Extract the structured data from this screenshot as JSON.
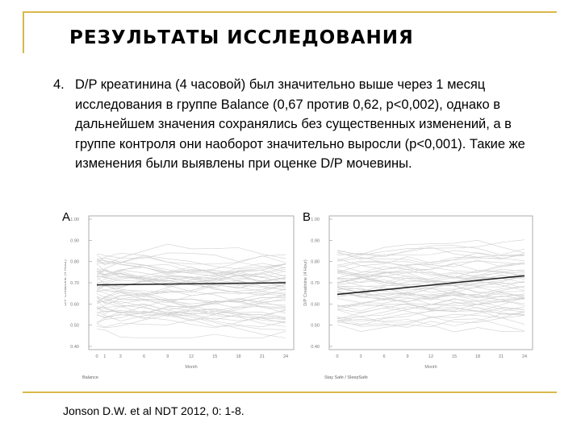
{
  "slide": {
    "title": "РЕЗУЛЬТАТЫ ИССЛЕДОВАНИЯ",
    "item_number": "4.",
    "item_text": "D/P креатинина (4 часовой) был значительно выше через 1 месяц исследования в группе Balance (0,67 против 0,62, p<0,002), однако в дальнейшем значения сохранялись без существенных изменений, а в группе контроля они наоборот значительно выросли (p<0,001). Такие же изменения были выявлены при оценке D/P мочевины.",
    "citation": "Jonson D.W. et al NDT 2012, 0: 1-8.",
    "accent_color": "#d9b84a"
  },
  "chart_data": [
    {
      "panel": "A",
      "type": "line",
      "ylabel": "D/P Creatinine (4 Hour)",
      "xlabel": "Month",
      "group_label": "Balance",
      "x_ticks": [
        "0",
        "1",
        "3",
        "6",
        "9",
        "12",
        "15",
        "18",
        "21",
        "24"
      ],
      "y_ticks": [
        "1.00",
        "0.90",
        "0.80",
        "0.70",
        "0.60",
        "0.50",
        "0.40"
      ],
      "ylim": [
        0.4,
        1.0
      ],
      "trend": {
        "x": [
          0,
          24
        ],
        "y": [
          0.69,
          0.7
        ]
      }
    },
    {
      "panel": "B",
      "type": "line",
      "ylabel": "D/P Creatinine (4 Hour)",
      "xlabel": "Month",
      "group_label": "Stay Safe / SleepSafe",
      "x_ticks": [
        "0",
        "3",
        "6",
        "9",
        "12",
        "15",
        "18",
        "21",
        "24"
      ],
      "y_ticks": [
        "1.00",
        "0.90",
        "0.80",
        "0.70",
        "0.60",
        "0.50",
        "0.40"
      ],
      "ylim": [
        0.4,
        1.0
      ],
      "trend": {
        "x": [
          0,
          24
        ],
        "y": [
          0.645,
          0.733
        ]
      }
    }
  ]
}
